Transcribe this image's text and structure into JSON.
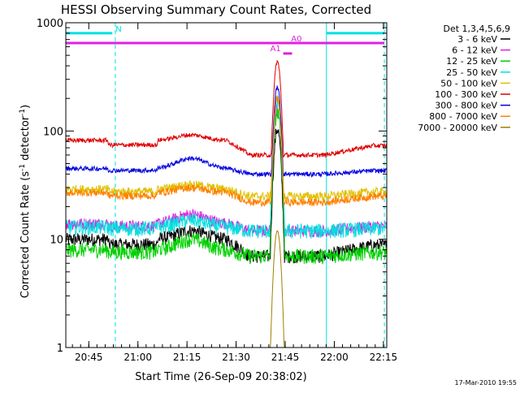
{
  "chart_data": {
    "type": "line",
    "title": "HESSI Observing Summary Count Rates, Corrected",
    "xlabel": "Start Time (26-Sep-09 20:38:02)",
    "ylabel_main": "Corrected Count Rate (s",
    "ylabel_sup1": "-1",
    "ylabel_mid": " detector",
    "ylabel_sup2": "-1",
    "ylabel_end": ")",
    "yscale": "log",
    "ylim": [
      1,
      1000
    ],
    "xlim_minutes": [
      20.633,
      22.267
    ],
    "x_ticks": [
      {
        "t": 20.75,
        "label": "20:45"
      },
      {
        "t": 21.0,
        "label": "21:00"
      },
      {
        "t": 21.25,
        "label": "21:15"
      },
      {
        "t": 21.5,
        "label": "21:30"
      },
      {
        "t": 21.75,
        "label": "21:45"
      },
      {
        "t": 22.0,
        "label": "22:00"
      },
      {
        "t": 22.25,
        "label": "22:15"
      }
    ],
    "y_ticks": [
      {
        "v": 1,
        "label": "1"
      },
      {
        "v": 10,
        "label": "10"
      },
      {
        "v": 100,
        "label": "100"
      },
      {
        "v": 1000,
        "label": "1000"
      }
    ],
    "legend_header": "Det 1,3,4,5,6,9",
    "legend_position": "right",
    "series": [
      {
        "name": "3 - 6 keV",
        "color": "#000000",
        "base": 10,
        "hump": 12,
        "peak": 105,
        "floor": 7,
        "noise": 0.09
      },
      {
        "name": "6 - 12 keV",
        "color": "#e020e0",
        "base": 14,
        "hump": 17,
        "peak": 165,
        "floor": 12,
        "noise": 0.08
      },
      {
        "name": "12 - 25 keV",
        "color": "#00d000",
        "base": 8,
        "hump": 10,
        "peak": 150,
        "floor": 7,
        "noise": 0.1
      },
      {
        "name": "25 - 50 keV",
        "color": "#00e0e0",
        "base": 13,
        "hump": 15,
        "peak": 190,
        "floor": 12,
        "noise": 0.1
      },
      {
        "name": "50 - 100 keV",
        "color": "#e0c000",
        "base": 29,
        "hump": 32,
        "peak": 205,
        "floor": 25,
        "noise": 0.06
      },
      {
        "name": "100 - 300 keV",
        "color": "#e00000",
        "base": 82,
        "hump": 92,
        "peak": 440,
        "floor": 60,
        "noise": 0.03
      },
      {
        "name": "300 - 800 keV",
        "color": "#0000e0",
        "base": 45,
        "hump": 56,
        "peak": 255,
        "floor": 40,
        "noise": 0.03
      },
      {
        "name": "800 - 7000 keV",
        "color": "#ff8000",
        "base": 27,
        "hump": 30,
        "peak": 200,
        "floor": 22,
        "noise": 0.05
      },
      {
        "name": "7000 - 20000 keV",
        "color": "#a08000",
        "base": 0,
        "hump": 0,
        "peak": 12,
        "floor": 0,
        "noise": 0.05
      }
    ],
    "time_markers": [
      {
        "t": 20.633,
        "style": "solid",
        "color": "#00e0e0"
      },
      {
        "t": 20.885,
        "style": "dashed",
        "color": "#00e0e0"
      },
      {
        "t": 21.96,
        "style": "solid",
        "color": "#00e0e0"
      },
      {
        "t": 22.255,
        "style": "dashed",
        "color": "#00e0e0"
      }
    ],
    "bars": [
      {
        "label": "N",
        "t0": 20.633,
        "t1": 20.87,
        "level": 800,
        "color": "#00e0e0"
      },
      {
        "label": "",
        "t0": 21.96,
        "t1": 22.255,
        "level": 800,
        "color": "#00e0e0"
      },
      {
        "label": "A0",
        "t0": 20.633,
        "t1": 22.255,
        "level": 650,
        "color": "#e020e0"
      },
      {
        "label": "A1",
        "t0": 21.74,
        "t1": 21.785,
        "level": 520,
        "color": "#e020e0"
      }
    ],
    "footer_date": "17-Mar-2010 19:55"
  }
}
